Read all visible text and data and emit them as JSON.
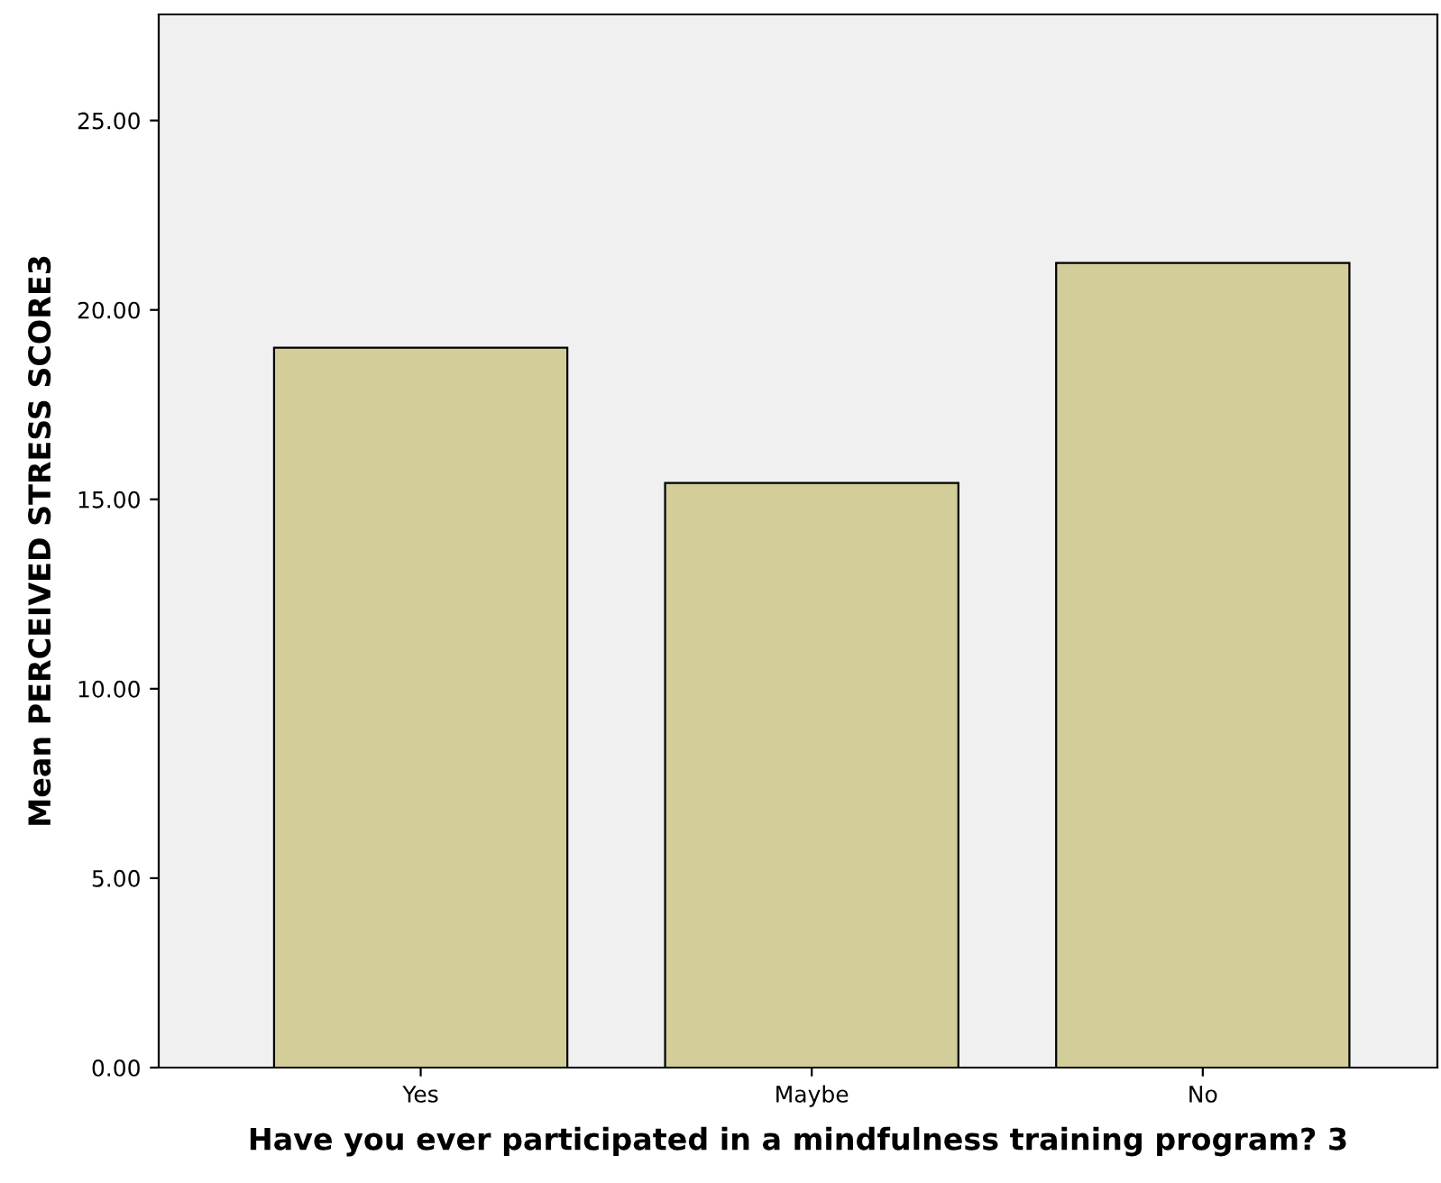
{
  "chart_data": {
    "type": "bar",
    "xlabel": "Have you ever participated in a mindfulness training program? 3",
    "ylabel": "Mean PERCEIVED STRESS SCORE3",
    "categories": [
      "Yes",
      "Maybe",
      "No"
    ],
    "values": [
      19.0,
      15.43,
      21.24
    ],
    "color": "#d3ce99",
    "ylim": [
      0,
      27.8
    ],
    "yticks": [
      {
        "value": 0,
        "label": "0.00"
      },
      {
        "value": 5,
        "label": "5.00"
      },
      {
        "value": 10,
        "label": "10.00"
      },
      {
        "value": 15,
        "label": "15.00"
      },
      {
        "value": 20,
        "label": "20.00"
      },
      {
        "value": 25,
        "label": "25.00"
      }
    ],
    "grid": false
  }
}
